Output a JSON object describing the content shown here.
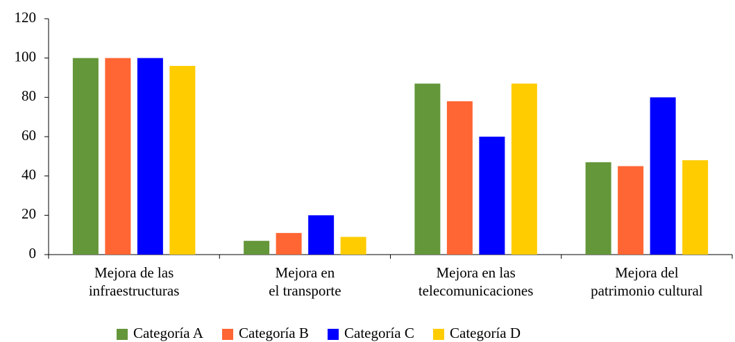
{
  "chart_data": {
    "type": "bar",
    "categories": [
      "Mejora de las\ninfraestructuras",
      "Mejora en\nel transporte",
      "Mejora en las\ntelecomunicaciones",
      "Mejora del\npatrimonio cultural"
    ],
    "series": [
      {
        "name": "Categoría A",
        "color": "#64963a",
        "values": [
          100,
          7,
          87,
          47
        ]
      },
      {
        "name": "Categoría B",
        "color": "#ff6633",
        "values": [
          100,
          11,
          78,
          45
        ]
      },
      {
        "name": "Categoría C",
        "color": "#0000ff",
        "values": [
          100,
          20,
          60,
          80
        ]
      },
      {
        "name": "Categoría D",
        "color": "#ffcc00",
        "values": [
          96,
          9,
          87,
          48
        ]
      }
    ],
    "ylim": [
      0,
      120
    ],
    "yticks": [
      0,
      20,
      40,
      60,
      80,
      100,
      120
    ],
    "grid": false,
    "legend": "bottom"
  }
}
